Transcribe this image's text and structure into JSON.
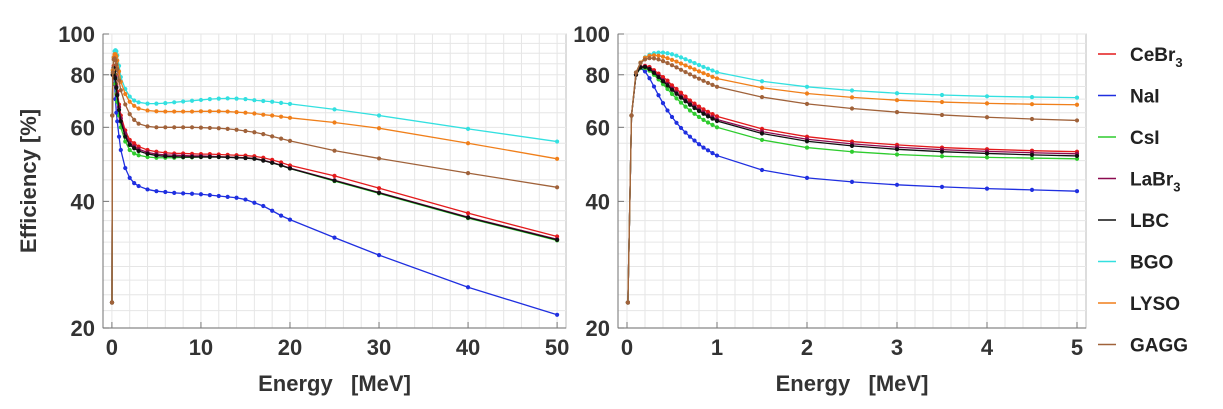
{
  "chart_data": [
    {
      "type": "line",
      "ylabel": "Efficiency [%]",
      "xlabel": "Energy   [MeV]",
      "xlim": [
        -1,
        51
      ],
      "ylim": [
        20,
        100
      ],
      "y_scale": "log",
      "grid": true,
      "x_ticks": [
        "0",
        "10",
        "20",
        "30",
        "40",
        "50"
      ],
      "y_ticks": [
        "20",
        "40",
        "60",
        "80",
        "100"
      ],
      "x": [
        0.01,
        0.05,
        0.1,
        0.2,
        0.3,
        0.4,
        0.5,
        0.6,
        0.8,
        1,
        1.5,
        2,
        2.5,
        3,
        4,
        5,
        6,
        7,
        8,
        9,
        10,
        11,
        12,
        13,
        14,
        15,
        16,
        17,
        18,
        19,
        20,
        25,
        30,
        40,
        50
      ],
      "series": [
        {
          "name": "CeBr3",
          "color": "#e31a1c",
          "values": [
            23,
            64,
            80,
            84,
            83,
            80,
            76,
            73,
            68,
            64,
            59,
            56,
            55,
            54,
            53,
            52.5,
            52.2,
            52,
            52,
            51.9,
            51.8,
            51.8,
            51.7,
            51.6,
            51.5,
            51.4,
            51.2,
            50.8,
            50.2,
            49.5,
            48.7,
            46,
            43,
            37.5,
            33
          ]
        },
        {
          "name": "NaI",
          "color": "#1f2fe0",
          "values": [
            23,
            64,
            80,
            81,
            76,
            70,
            65,
            62,
            57,
            53,
            48,
            45.5,
            44.2,
            43.5,
            42.7,
            42.3,
            42.1,
            41.9,
            41.8,
            41.7,
            41.6,
            41.4,
            41.2,
            41,
            40.8,
            40.4,
            39.7,
            39,
            38,
            37,
            36.2,
            32.8,
            29.8,
            25,
            21.5
          ]
        },
        {
          "name": "CsI",
          "color": "#2ecc2e",
          "values": [
            23,
            64,
            80,
            82,
            80,
            76,
            72,
            69,
            64,
            60,
            55.5,
            53,
            52,
            51.5,
            51,
            50.8,
            50.8,
            50.8,
            50.9,
            50.9,
            51,
            51,
            51,
            51,
            50.9,
            50.8,
            50.6,
            50.1,
            49.4,
            48.7,
            47.9,
            44.7,
            41.8,
            36.5,
            32.3
          ]
        },
        {
          "name": "LaBr3",
          "color": "#8b0a50",
          "values": [
            23,
            64,
            80,
            83,
            82,
            79,
            75,
            72,
            67,
            63,
            58,
            55,
            54,
            53.2,
            52.3,
            51.8,
            51.6,
            51.5,
            51.4,
            51.3,
            51.3,
            51.2,
            51.1,
            51,
            50.9,
            50.8,
            50.6,
            50.1,
            49.5,
            48.8,
            48,
            44.9,
            42,
            36.7,
            32.5
          ]
        },
        {
          "name": "LBC",
          "color": "#111111",
          "values": [
            23,
            64,
            80,
            83,
            81.5,
            78.5,
            74.5,
            71.5,
            66,
            62,
            57,
            54.5,
            53.5,
            52.7,
            51.9,
            51.4,
            51.2,
            51.1,
            51,
            51,
            51,
            51,
            51,
            50.9,
            50.8,
            50.7,
            50.5,
            50,
            49.4,
            48.7,
            47.9,
            44.8,
            41.9,
            36.6,
            32.4
          ]
        },
        {
          "name": "BGO",
          "color": "#33e0e0",
          "values": [
            23,
            64,
            82,
            88,
            91,
            91.5,
            91,
            89,
            84,
            79,
            74,
            71,
            69.5,
            68.8,
            68.3,
            68.3,
            68.5,
            68.8,
            69.1,
            69.4,
            69.7,
            70,
            70.2,
            70.3,
            70.2,
            70,
            69.6,
            69.3,
            69,
            68.6,
            68.2,
            66.2,
            64,
            59.5,
            55.5
          ]
        },
        {
          "name": "LYSO",
          "color": "#f07f1a",
          "values": [
            23,
            64,
            82,
            88,
            89.5,
            89.5,
            88.5,
            86.5,
            81.5,
            77,
            72,
            69,
            67.5,
            66.5,
            65.8,
            65.5,
            65.4,
            65.4,
            65.4,
            65.4,
            65.5,
            65.5,
            65.5,
            65.4,
            65.2,
            65,
            64.7,
            64.3,
            64,
            63.6,
            63.2,
            61.6,
            59.7,
            55,
            50.5
          ]
        },
        {
          "name": "GAGG",
          "color": "#a0623a",
          "values": [
            23,
            64,
            81,
            87,
            87.5,
            86.5,
            84.5,
            82.5,
            77.5,
            73.5,
            68,
            64.5,
            62.5,
            61.2,
            60.3,
            60,
            60,
            60,
            60,
            60,
            59.9,
            59.8,
            59.7,
            59.5,
            59.2,
            58.8,
            58.4,
            57.8,
            57.1,
            56.4,
            55.7,
            52.8,
            50.6,
            46.7,
            43.2
          ]
        }
      ]
    },
    {
      "type": "line",
      "xlabel": "Energy   [MeV]",
      "xlim": [
        -0.1,
        5.1
      ],
      "ylim": [
        20,
        100
      ],
      "y_scale": "log",
      "grid": true,
      "x_ticks": [
        "0",
        "1",
        "2",
        "3",
        "4",
        "5"
      ],
      "y_ticks": [
        "20",
        "40",
        "60",
        "80",
        "100"
      ],
      "x": [
        0.01,
        0.05,
        0.1,
        0.15,
        0.2,
        0.25,
        0.3,
        0.35,
        0.4,
        0.45,
        0.5,
        0.55,
        0.6,
        0.65,
        0.7,
        0.75,
        0.8,
        0.85,
        0.9,
        0.95,
        1.0,
        1.5,
        2.0,
        2.5,
        3.0,
        3.5,
        4.0,
        4.5,
        5.0
      ],
      "series": [
        {
          "name": "CeBr3",
          "color": "#e31a1c",
          "values": [
            23,
            64,
            80,
            83.5,
            84,
            83.5,
            82,
            80.5,
            79,
            77.5,
            75.5,
            74,
            72.5,
            71,
            69.5,
            68.3,
            67.2,
            66.2,
            65.3,
            64.5,
            63.7,
            59.5,
            57,
            55.5,
            54.5,
            53.7,
            53.2,
            52.8,
            52.5
          ]
        },
        {
          "name": "NaI",
          "color": "#1f2fe0",
          "values": [
            23,
            64,
            80,
            83,
            81.5,
            78.5,
            75,
            71.5,
            68.5,
            65.8,
            63.5,
            61.5,
            59.8,
            58.3,
            57,
            55.8,
            54.7,
            53.7,
            52.9,
            52.1,
            51.4,
            47.5,
            45.5,
            44.5,
            43.8,
            43.3,
            42.9,
            42.6,
            42.3
          ]
        },
        {
          "name": "CsI",
          "color": "#2ecc2e",
          "values": [
            23,
            64,
            80,
            83,
            83,
            81.8,
            80,
            78,
            76,
            74,
            72,
            70.3,
            68.7,
            67.2,
            65.8,
            64.6,
            63.5,
            62.5,
            61.6,
            60.8,
            60,
            56,
            53.7,
            52.5,
            51.7,
            51.2,
            50.9,
            50.7,
            50.5
          ]
        },
        {
          "name": "LaBr3",
          "color": "#8b0a50",
          "values": [
            23,
            64,
            80,
            83.5,
            83.7,
            82.8,
            81.2,
            79.5,
            77.7,
            76,
            74.2,
            72.6,
            71.1,
            69.7,
            68.4,
            67.2,
            66.1,
            65.1,
            64.2,
            63.4,
            62.6,
            58.6,
            56.2,
            54.8,
            53.8,
            53.1,
            52.6,
            52.2,
            51.9
          ]
        },
        {
          "name": "LBC",
          "color": "#111111",
          "values": [
            23,
            64,
            80,
            83.3,
            83.5,
            82.5,
            80.8,
            79,
            77.2,
            75.5,
            73.7,
            72.1,
            70.6,
            69.2,
            67.9,
            66.7,
            65.6,
            64.6,
            63.7,
            62.9,
            62.1,
            58,
            55.6,
            54.2,
            53.2,
            52.5,
            52,
            51.6,
            51.3
          ]
        },
        {
          "name": "BGO",
          "color": "#33e0e0",
          "values": [
            23,
            64,
            81,
            85.5,
            88,
            89.3,
            90,
            90.3,
            90.3,
            90,
            89.5,
            88.8,
            88,
            87.1,
            86.2,
            85.3,
            84.4,
            83.5,
            82.7,
            81.9,
            81.1,
            77.2,
            74.9,
            73.4,
            72.3,
            71.6,
            71.1,
            70.8,
            70.6
          ]
        },
        {
          "name": "LYSO",
          "color": "#f07f1a",
          "values": [
            23,
            64,
            81,
            85.5,
            87.8,
            88.8,
            89,
            88.8,
            88.3,
            87.6,
            86.8,
            86,
            85.1,
            84.2,
            83.3,
            82.4,
            81.5,
            80.7,
            79.9,
            79.1,
            78.4,
            74.5,
            72.2,
            70.7,
            69.6,
            68.9,
            68.4,
            68.1,
            67.9
          ]
        },
        {
          "name": "GAGG",
          "color": "#a0623a",
          "values": [
            23,
            64,
            81,
            85.3,
            87,
            87.6,
            87.5,
            87,
            86.2,
            85.3,
            84.3,
            83.3,
            82.2,
            81.2,
            80.2,
            79.2,
            78.3,
            77.4,
            76.5,
            75.7,
            74.9,
            70.8,
            68.2,
            66.5,
            65.2,
            64.2,
            63.4,
            62.8,
            62.3
          ]
        }
      ]
    }
  ],
  "legend": {
    "placement": "right",
    "items": [
      {
        "main": "CeBr",
        "sub": "3"
      },
      {
        "main": "NaI",
        "sub": ""
      },
      {
        "main": "CsI",
        "sub": ""
      },
      {
        "main": "LaBr",
        "sub": "3"
      },
      {
        "main": "LBC",
        "sub": ""
      },
      {
        "main": "BGO",
        "sub": ""
      },
      {
        "main": "LYSO",
        "sub": ""
      },
      {
        "main": "GAGG",
        "sub": ""
      }
    ]
  }
}
